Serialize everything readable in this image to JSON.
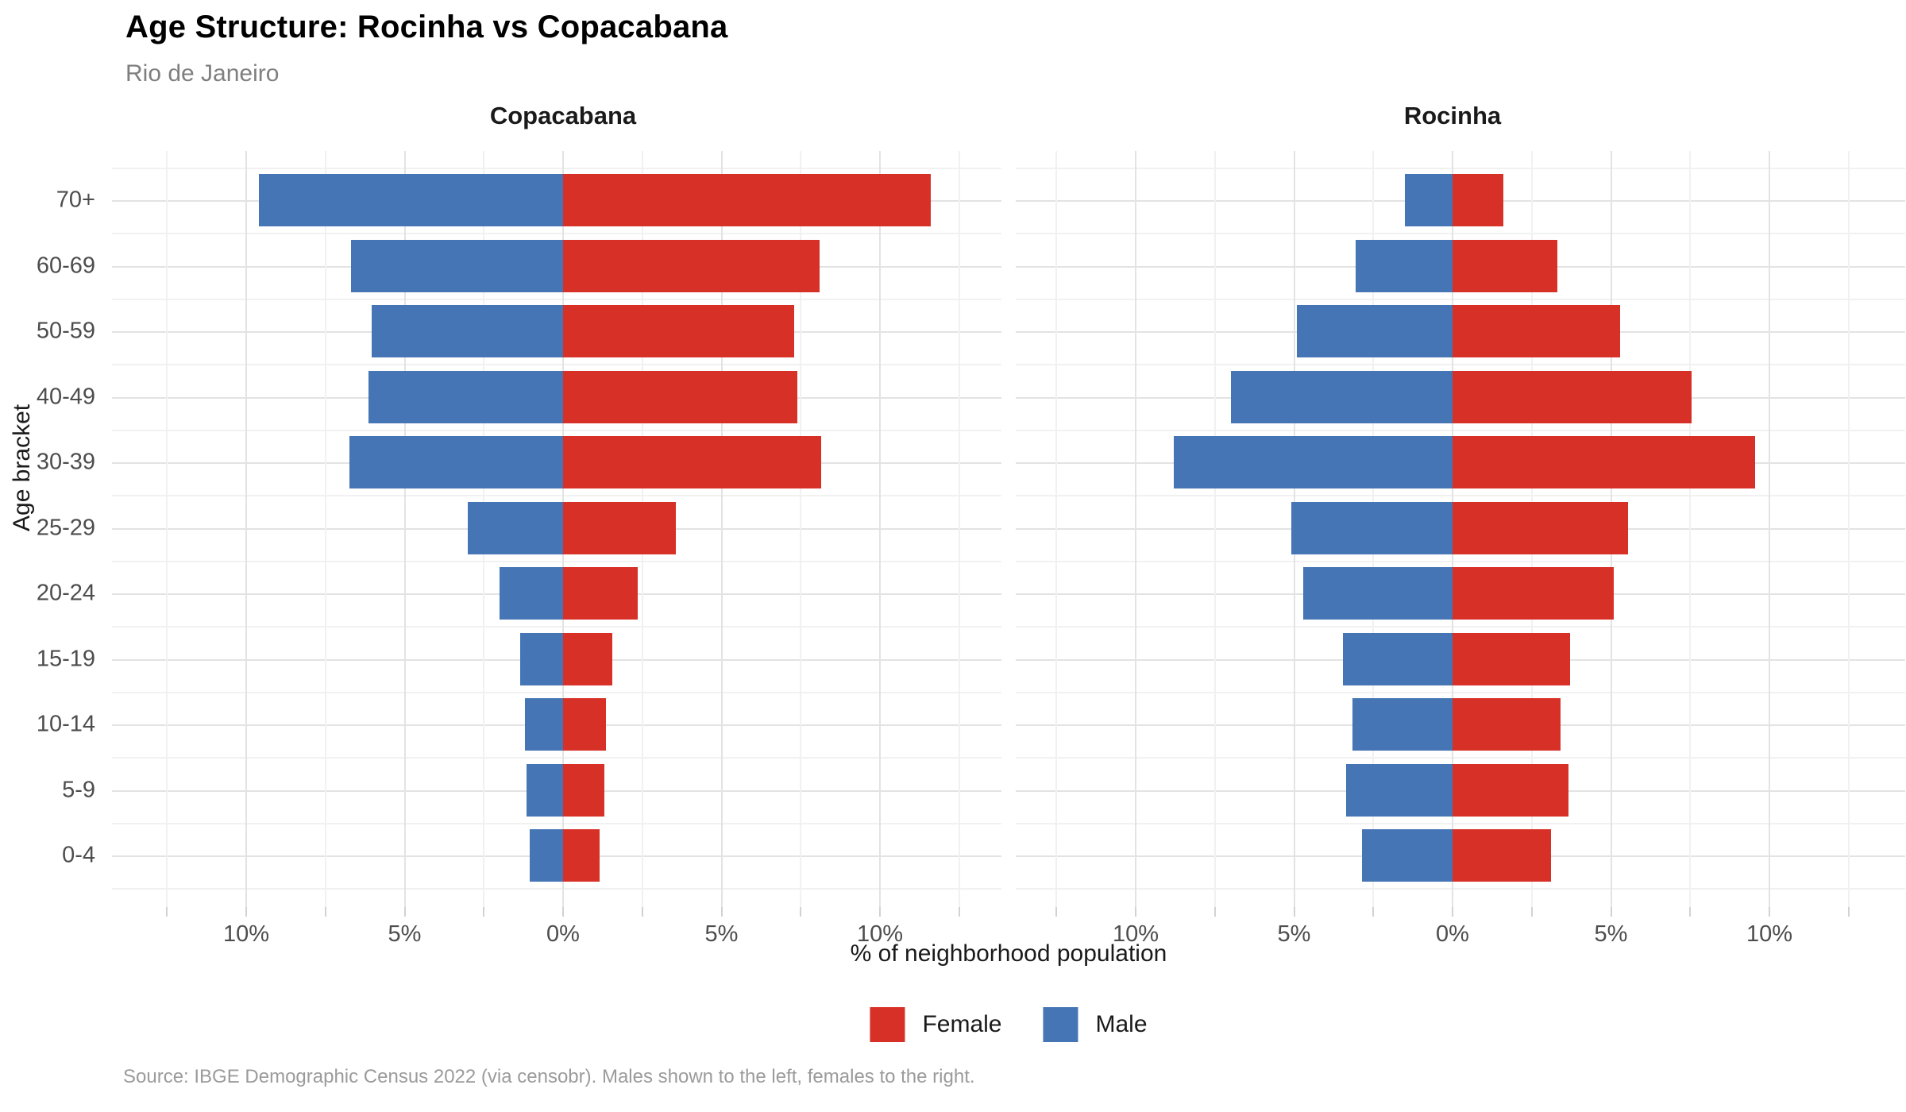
{
  "header": {
    "title": "Age Structure: Rocinha vs Copacabana",
    "subtitle": "Rio de Janeiro"
  },
  "colors": {
    "female": "#d73027",
    "male": "#4575b4",
    "grid_major": "#e3e3e3",
    "grid_minor": "#f1f1f1",
    "tick_label": "#4d4d4d"
  },
  "chart_data": {
    "type": "bar",
    "variant": "population-pyramid-faceted",
    "orientation": "horizontal",
    "categories_top_to_bottom": [
      "70+",
      "60-69",
      "50-59",
      "40-49",
      "30-39",
      "25-29",
      "20-24",
      "15-19",
      "10-14",
      "5-9",
      "0-4"
    ],
    "panels": [
      {
        "title": "Copacabana",
        "series": [
          {
            "name": "Male",
            "side": "left",
            "color_key": "male",
            "values": [
              9.6,
              6.7,
              6.05,
              6.15,
              6.75,
              3.0,
              2.0,
              1.35,
              1.2,
              1.15,
              1.05
            ]
          },
          {
            "name": "Female",
            "side": "right",
            "color_key": "female",
            "values": [
              11.6,
              8.1,
              7.3,
              7.4,
              8.15,
              3.55,
              2.35,
              1.55,
              1.35,
              1.3,
              1.15
            ]
          }
        ]
      },
      {
        "title": "Rocinha",
        "series": [
          {
            "name": "Male",
            "side": "left",
            "color_key": "male",
            "values": [
              1.5,
              3.05,
              4.9,
              7.0,
              8.8,
              5.1,
              4.7,
              3.45,
              3.15,
              3.35,
              2.85
            ]
          },
          {
            "name": "Female",
            "side": "right",
            "color_key": "female",
            "values": [
              1.6,
              3.3,
              5.3,
              7.55,
              9.55,
              5.55,
              5.1,
              3.7,
              3.4,
              3.65,
              3.1
            ]
          }
        ]
      }
    ],
    "xlabel": "% of neighborhood population",
    "ylabel": "Age bracket",
    "xlim": [
      -14,
      14
    ],
    "x_ticks": [
      {
        "value": -10,
        "label": "10%"
      },
      {
        "value": -5,
        "label": "5%"
      },
      {
        "value": 0,
        "label": "0%"
      },
      {
        "value": 5,
        "label": "5%"
      },
      {
        "value": 10,
        "label": "10%"
      }
    ],
    "grid": {
      "major_every_pct": 5,
      "minor_every_pct": 2.5,
      "extent_pct": 12.5,
      "horizontal_major": "row-centers",
      "horizontal_minor": "row-boundaries"
    },
    "legend_position": "bottom-center",
    "legend": [
      {
        "label": "Female",
        "color_key": "female"
      },
      {
        "label": "Male",
        "color_key": "male"
      }
    ]
  },
  "caption": "Source: IBGE Demographic Census 2022 (via censobr). Males shown to the left, females to the right."
}
